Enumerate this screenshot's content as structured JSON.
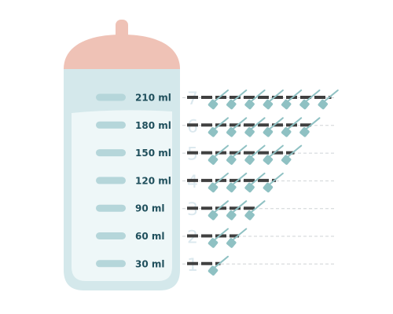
{
  "colors": {
    "cap": "#efc2b6",
    "bottle_outer": "#d4e8eb",
    "bottle_inner": "#eef7f8",
    "mark": "#b5d6da",
    "text": "#1f4f5c",
    "scoop": "#8fc1c3",
    "scoop_handle": "#8fc1c3",
    "level_bar": "#404040",
    "dashed": "#cfd3d6",
    "number": "#dbe8ee"
  },
  "rows": [
    {
      "volume_label": "210 ml",
      "scoops_label": "7",
      "scoops": 7
    },
    {
      "volume_label": "180 ml",
      "scoops_label": "6",
      "scoops": 6
    },
    {
      "volume_label": "150 ml",
      "scoops_label": "5",
      "scoops": 5
    },
    {
      "volume_label": "120 ml",
      "scoops_label": "4",
      "scoops": 4
    },
    {
      "volume_label": "90 ml",
      "scoops_label": "3",
      "scoops": 3
    },
    {
      "volume_label": "60 ml",
      "scoops_label": "2",
      "scoops": 2
    },
    {
      "volume_label": "30 ml",
      "scoops_label": "1",
      "scoops": 1
    }
  ]
}
